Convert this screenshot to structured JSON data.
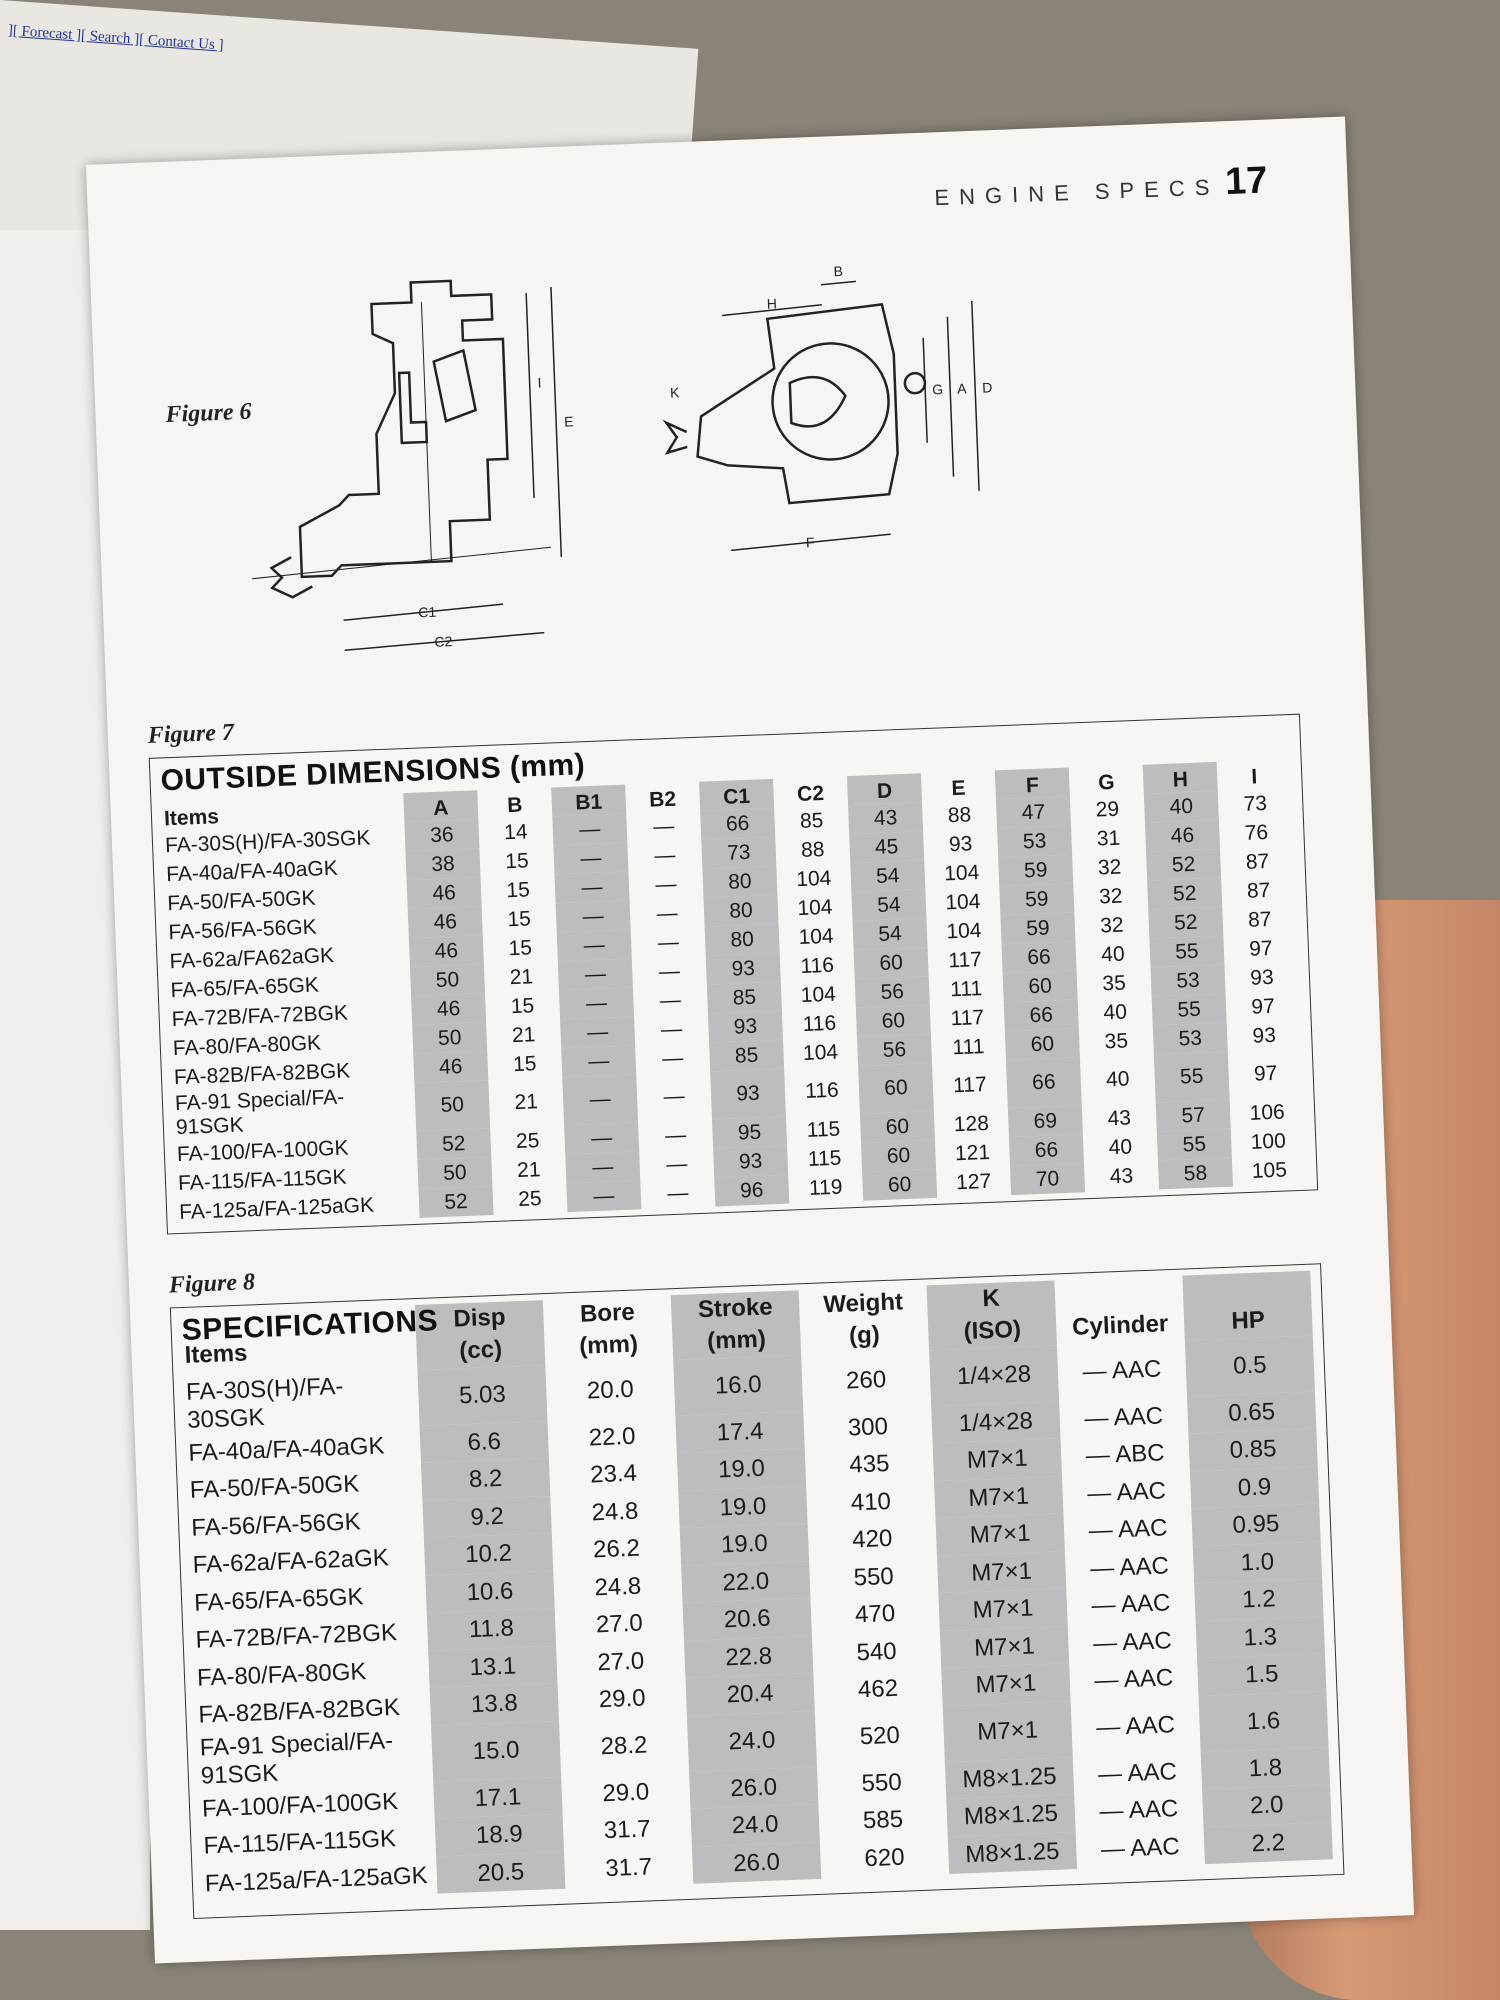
{
  "browser_links": "][ Forecast ][ Search ][ Contact Us ]",
  "header": {
    "section": "ENGINE SPECS",
    "page": "17"
  },
  "figure6": {
    "label": "Figure 6",
    "dimension_labels": {
      "I": "I",
      "E": "E",
      "C1": "C1",
      "C2": "C2",
      "B": "B",
      "H": "H",
      "K": "K",
      "G": "G",
      "A": "A",
      "D": "D",
      "F": "F"
    }
  },
  "figure7": {
    "label": "Figure 7",
    "title": "OUTSIDE DIMENSIONS (mm)",
    "columns": [
      "Items",
      "A",
      "B",
      "B1",
      "B2",
      "C1",
      "C2",
      "D",
      "E",
      "F",
      "G",
      "H",
      "I"
    ],
    "rows": [
      [
        "FA-30S(H)/FA-30SGK",
        "36",
        "14",
        "—",
        "—",
        "66",
        "85",
        "43",
        "88",
        "47",
        "29",
        "40",
        "73"
      ],
      [
        "FA-40a/FA-40aGK",
        "38",
        "15",
        "—",
        "—",
        "73",
        "88",
        "45",
        "93",
        "53",
        "31",
        "46",
        "76"
      ],
      [
        "FA-50/FA-50GK",
        "46",
        "15",
        "—",
        "—",
        "80",
        "104",
        "54",
        "104",
        "59",
        "32",
        "52",
        "87"
      ],
      [
        "FA-56/FA-56GK",
        "46",
        "15",
        "—",
        "—",
        "80",
        "104",
        "54",
        "104",
        "59",
        "32",
        "52",
        "87"
      ],
      [
        "FA-62a/FA62aGK",
        "46",
        "15",
        "—",
        "—",
        "80",
        "104",
        "54",
        "104",
        "59",
        "32",
        "52",
        "87"
      ],
      [
        "FA-65/FA-65GK",
        "50",
        "21",
        "—",
        "—",
        "93",
        "116",
        "60",
        "117",
        "66",
        "40",
        "55",
        "97"
      ],
      [
        "FA-72B/FA-72BGK",
        "46",
        "15",
        "—",
        "—",
        "85",
        "104",
        "56",
        "111",
        "60",
        "35",
        "53",
        "93"
      ],
      [
        "FA-80/FA-80GK",
        "50",
        "21",
        "—",
        "—",
        "93",
        "116",
        "60",
        "117",
        "66",
        "40",
        "55",
        "97"
      ],
      [
        "FA-82B/FA-82BGK",
        "46",
        "15",
        "—",
        "—",
        "85",
        "104",
        "56",
        "111",
        "60",
        "35",
        "53",
        "93"
      ],
      [
        "FA-91 Special/FA-91SGK",
        "50",
        "21",
        "—",
        "—",
        "93",
        "116",
        "60",
        "117",
        "66",
        "40",
        "55",
        "97"
      ],
      [
        "FA-100/FA-100GK",
        "52",
        "25",
        "—",
        "—",
        "95",
        "115",
        "60",
        "128",
        "69",
        "43",
        "57",
        "106"
      ],
      [
        "FA-115/FA-115GK",
        "50",
        "21",
        "—",
        "—",
        "93",
        "115",
        "60",
        "121",
        "66",
        "40",
        "55",
        "100"
      ],
      [
        "FA-125a/FA-125aGK",
        "52",
        "25",
        "—",
        "—",
        "96",
        "119",
        "60",
        "127",
        "70",
        "43",
        "58",
        "105"
      ]
    ]
  },
  "figure8": {
    "label": "Figure 8",
    "title": "SPECIFICATIONS",
    "columns": [
      [
        "Items"
      ],
      [
        "Disp",
        "(cc)"
      ],
      [
        "Bore",
        "(mm)"
      ],
      [
        "Stroke",
        "(mm)"
      ],
      [
        "Weight",
        "(g)"
      ],
      [
        "K",
        "(ISO)"
      ],
      [
        "Cylinder"
      ],
      [
        "HP"
      ]
    ],
    "rows": [
      [
        "FA-30S(H)/FA-30SGK",
        "5.03",
        "20.0",
        "16.0",
        "260",
        "1/4×28",
        "— AAC",
        "0.5"
      ],
      [
        "FA-40a/FA-40aGK",
        "6.6",
        "22.0",
        "17.4",
        "300",
        "1/4×28",
        "— AAC",
        "0.65"
      ],
      [
        "FA-50/FA-50GK",
        "8.2",
        "23.4",
        "19.0",
        "435",
        "M7×1",
        "— ABC",
        "0.85"
      ],
      [
        "FA-56/FA-56GK",
        "9.2",
        "24.8",
        "19.0",
        "410",
        "M7×1",
        "— AAC",
        "0.9"
      ],
      [
        "FA-62a/FA-62aGK",
        "10.2",
        "26.2",
        "19.0",
        "420",
        "M7×1",
        "— AAC",
        "0.95"
      ],
      [
        "FA-65/FA-65GK",
        "10.6",
        "24.8",
        "22.0",
        "550",
        "M7×1",
        "— AAC",
        "1.0"
      ],
      [
        "FA-72B/FA-72BGK",
        "11.8",
        "27.0",
        "20.6",
        "470",
        "M7×1",
        "— AAC",
        "1.2"
      ],
      [
        "FA-80/FA-80GK",
        "13.1",
        "27.0",
        "22.8",
        "540",
        "M7×1",
        "— AAC",
        "1.3"
      ],
      [
        "FA-82B/FA-82BGK",
        "13.8",
        "29.0",
        "20.4",
        "462",
        "M7×1",
        "— AAC",
        "1.5"
      ],
      [
        "FA-91 Special/FA-91SGK",
        "15.0",
        "28.2",
        "24.0",
        "520",
        "M7×1",
        "— AAC",
        "1.6"
      ],
      [
        "FA-100/FA-100GK",
        "17.1",
        "29.0",
        "26.0",
        "550",
        "M8×1.25",
        "— AAC",
        "1.8"
      ],
      [
        "FA-115/FA-115GK",
        "18.9",
        "31.7",
        "24.0",
        "585",
        "M8×1.25",
        "— AAC",
        "2.0"
      ],
      [
        "FA-125a/FA-125aGK",
        "20.5",
        "31.7",
        "26.0",
        "620",
        "M8×1.25",
        "— AAC",
        "2.2"
      ]
    ]
  }
}
